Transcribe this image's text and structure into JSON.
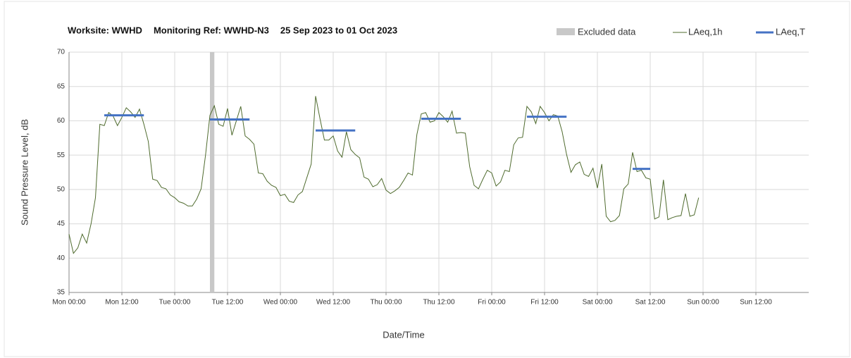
{
  "chart_data": {
    "type": "line",
    "title_parts": [
      "Worksite: WWHD",
      "Monitoring Ref: WWHD-N3",
      "25 Sep 2023 to 01 Oct 2023"
    ],
    "xlabel": "Date/Time",
    "ylabel": "Sound Pressure Level, dB",
    "xlim": [
      0,
      168
    ],
    "ylim": [
      35,
      70
    ],
    "yticks": [
      35,
      40,
      45,
      50,
      55,
      60,
      65,
      70
    ],
    "xticks": [
      {
        "value": 0,
        "label": "Mon 00:00"
      },
      {
        "value": 12,
        "label": "Mon 12:00"
      },
      {
        "value": 24,
        "label": "Tue 00:00"
      },
      {
        "value": 36,
        "label": "Tue 12:00"
      },
      {
        "value": 48,
        "label": "Wed 00:00"
      },
      {
        "value": 60,
        "label": "Wed 12:00"
      },
      {
        "value": 72,
        "label": "Thu 00:00"
      },
      {
        "value": 84,
        "label": "Thu 12:00"
      },
      {
        "value": 96,
        "label": "Fri 00:00"
      },
      {
        "value": 108,
        "label": "Fri 12:00"
      },
      {
        "value": 120,
        "label": "Sat 00:00"
      },
      {
        "value": 132,
        "label": "Sat 12:00"
      },
      {
        "value": 144,
        "label": "Sun 00:00"
      },
      {
        "value": 156,
        "label": "Sun 12:00"
      }
    ],
    "grid": true,
    "excluded": {
      "name": "Excluded data",
      "color": "#c8c8c8",
      "x": [
        32,
        33
      ]
    },
    "series": [
      {
        "name": "LAeq,1h",
        "color": "#4f6b2e",
        "x": [
          0,
          1,
          2,
          3,
          4,
          5,
          6,
          7,
          8,
          9,
          10,
          11,
          12,
          13,
          14,
          15,
          16,
          17,
          18,
          19,
          20,
          21,
          22,
          23,
          24,
          25,
          26,
          27,
          28,
          29,
          30,
          31,
          32,
          33,
          34,
          35,
          36,
          37,
          38,
          39,
          40,
          41,
          42,
          43,
          44,
          45,
          46,
          47,
          48,
          49,
          50,
          51,
          52,
          53,
          54,
          55,
          56,
          57,
          58,
          59,
          60,
          61,
          62,
          63,
          64,
          65,
          66,
          67,
          68,
          69,
          70,
          71,
          72,
          73,
          74,
          75,
          76,
          77,
          78,
          79,
          80,
          81,
          82,
          83,
          84,
          85,
          86,
          87,
          88,
          89,
          90,
          91,
          92,
          93,
          94,
          95,
          96,
          97,
          98,
          99,
          100,
          101,
          102,
          103,
          104,
          105,
          106,
          107,
          108,
          109,
          110,
          111,
          112,
          113,
          114,
          115,
          116,
          117,
          118,
          119,
          120,
          121,
          122,
          123,
          124,
          125,
          126,
          127,
          128,
          129,
          130,
          131,
          132,
          133,
          134,
          135,
          136,
          137,
          138,
          139,
          140,
          141,
          142,
          143
        ],
        "values": [
          43.5,
          40.7,
          41.5,
          43.5,
          42.2,
          45,
          48.8,
          59.5,
          59.3,
          61.2,
          60.7,
          59.3,
          60.5,
          61.9,
          61.3,
          60.5,
          61.7,
          59.5,
          57,
          51.5,
          51.3,
          50.3,
          50.1,
          49.2,
          48.8,
          48.2,
          48,
          47.6,
          47.6,
          48.6,
          50.1,
          55,
          60.8,
          62.2,
          59.5,
          59.2,
          61.8,
          57.9,
          60,
          62.1,
          57.8,
          57.3,
          56.6,
          52.4,
          52.3,
          51.2,
          50.6,
          50.3,
          49.1,
          49.3,
          48.3,
          48.1,
          49.2,
          49.7,
          51.7,
          53.7,
          63.6,
          60.3,
          57.2,
          57.2,
          57.8,
          55.6,
          54.7,
          58.4,
          55.8,
          55.1,
          54.6,
          51.8,
          51.5,
          50.4,
          50.7,
          51.6,
          49.9,
          49.4,
          49.8,
          50.3,
          51.3,
          52.4,
          52.1,
          58,
          61,
          61.2,
          59.8,
          60,
          61.2,
          60.6,
          59.8,
          61.4,
          58.2,
          58.3,
          58.2,
          53.3,
          50.6,
          50.1,
          51.5,
          52.8,
          52.4,
          50.5,
          51.1,
          52.8,
          52.6,
          56.5,
          57.5,
          57.6,
          62.1,
          61.3,
          59.6,
          62.1,
          61.2,
          60,
          60.9,
          60.7,
          58.4,
          55.1,
          52.5,
          53.6,
          54,
          52.2,
          51.9,
          53.1,
          50.2,
          53.7,
          46.1,
          45.3,
          45.5,
          46.2,
          50.1,
          50.8,
          55.4,
          52.6,
          52.8,
          51.7,
          51.5,
          45.7,
          46,
          51.4,
          45.6,
          45.9,
          46.1,
          46.2,
          49.4,
          46.1,
          46.3,
          48.8
        ]
      },
      {
        "name": "LAeq,T",
        "color": "#4472c4",
        "x": [
          [
            8,
            17
          ],
          [
            32,
            41
          ],
          [
            56,
            65
          ],
          [
            80,
            89
          ],
          [
            104,
            113
          ],
          [
            128,
            132
          ]
        ],
        "values": [
          60.8,
          60.2,
          58.6,
          60.3,
          60.6,
          53.0
        ]
      }
    ]
  }
}
